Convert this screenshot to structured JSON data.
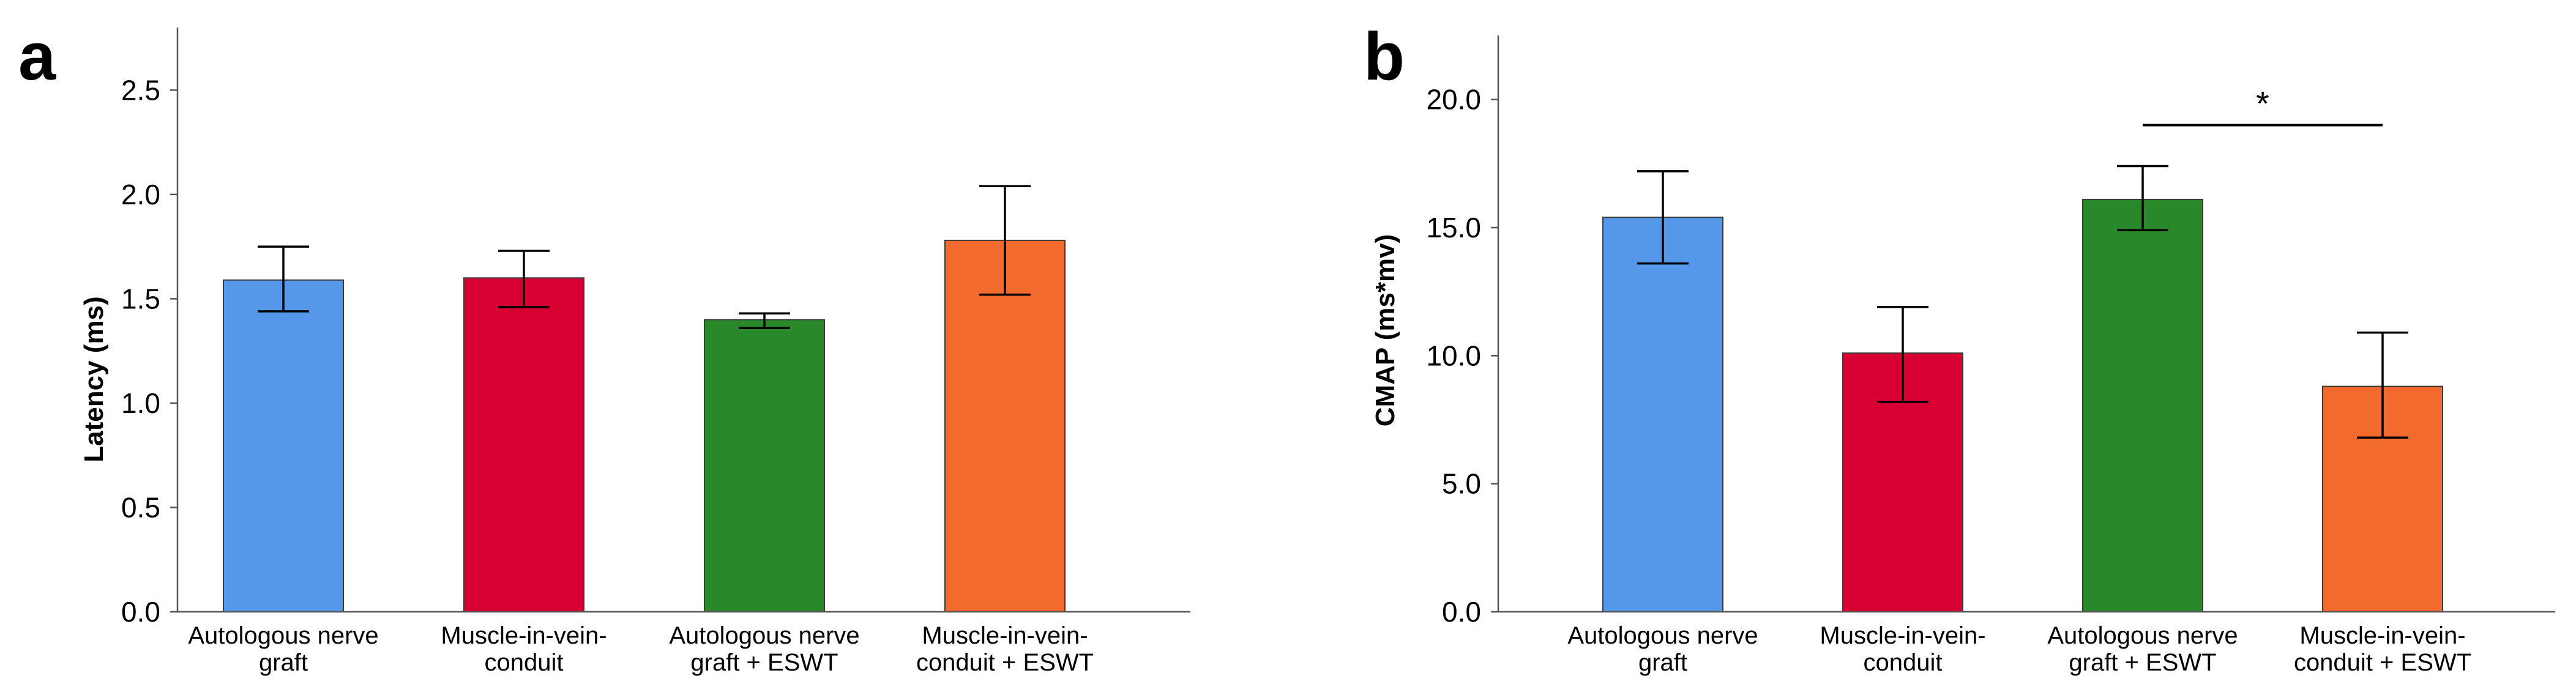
{
  "chart_data": [
    {
      "type": "bar",
      "panel": "a",
      "categories": [
        [
          "Autologous nerve",
          "graft"
        ],
        [
          "Muscle-in-vein-",
          "conduit"
        ],
        [
          "Autologous nerve",
          "graft + ESWT"
        ],
        [
          "Muscle-in-vein-",
          "conduit + ESWT"
        ]
      ],
      "values": [
        1.59,
        1.6,
        1.4,
        1.78
      ],
      "errors_low": [
        1.44,
        1.46,
        1.36,
        1.52
      ],
      "errors_high": [
        1.75,
        1.73,
        1.43,
        2.04
      ],
      "colors": [
        "#5597e8",
        "#d80032",
        "#28882a",
        "#f26a2e"
      ],
      "ylabel": "Latency (ms)",
      "ylim": [
        0,
        2.8
      ],
      "yticks": [
        "0.0",
        "0.5",
        "1.0",
        "1.5",
        "2.0",
        "2.5"
      ],
      "ytick_values": [
        0,
        0.5,
        1.0,
        1.5,
        2.0,
        2.5
      ]
    },
    {
      "type": "bar",
      "panel": "b",
      "categories": [
        [
          "Autologous nerve",
          "graft"
        ],
        [
          "Muscle-in-vein-",
          "conduit"
        ],
        [
          "Autologous nerve",
          "graft + ESWT"
        ],
        [
          "Muscle-in-vein-",
          "conduit + ESWT"
        ]
      ],
      "values": [
        15.4,
        10.1,
        16.1,
        8.8
      ],
      "errors_low": [
        13.6,
        8.2,
        14.9,
        6.8
      ],
      "errors_high": [
        17.2,
        11.9,
        17.4,
        10.9
      ],
      "colors": [
        "#5597e8",
        "#d80032",
        "#28882a",
        "#f26a2e"
      ],
      "ylabel": "CMAP (ms*mv)",
      "ylim": [
        0,
        22.5
      ],
      "yticks": [
        "0.0",
        "5.0",
        "10.0",
        "15.0",
        "20.0"
      ],
      "ytick_values": [
        0,
        5,
        10,
        15,
        20
      ],
      "significance": {
        "from": 2,
        "to": 3,
        "level": 19.0,
        "label": "*"
      }
    }
  ]
}
